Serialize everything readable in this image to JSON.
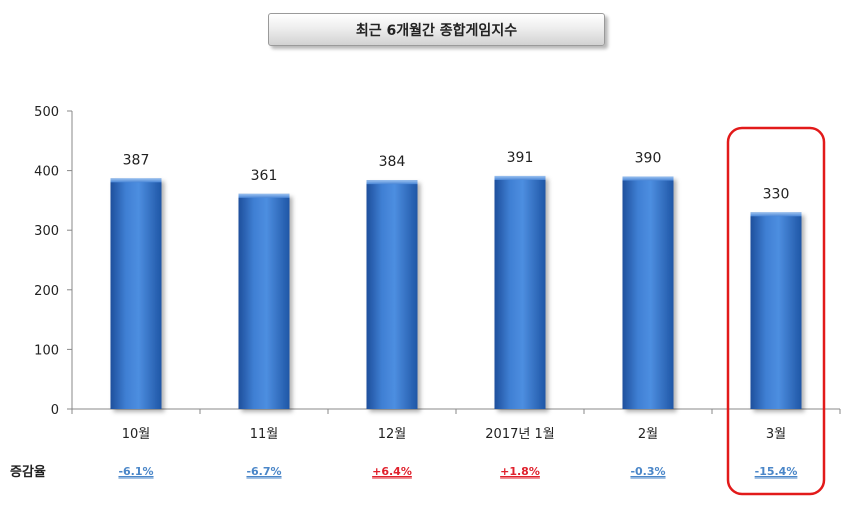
{
  "title": "최근 6개월간 종합게임지수",
  "chart_data": {
    "type": "bar",
    "title": "최근 6개월간 종합게임지수",
    "categories": [
      "10월",
      "11월",
      "12월",
      "2017년 1월",
      "2월",
      "3월"
    ],
    "values": [
      387,
      361,
      384,
      391,
      390,
      330
    ],
    "data_labels": [
      "387",
      "361",
      "384",
      "391",
      "390",
      "330"
    ],
    "ylim": [
      0,
      500
    ],
    "yticks": [
      0,
      100,
      200,
      300,
      400,
      500
    ],
    "ytick_labels": [
      "0",
      "100",
      "200",
      "300",
      "400",
      "500"
    ],
    "xlabel": "",
    "ylabel": "",
    "grid": false,
    "bar_color": "#3b78cc",
    "change_row": {
      "label": "증감율",
      "values": [
        "-6.1%",
        "-6.7%",
        "+6.4%",
        "+1.8%",
        "-0.3%",
        "-15.4%"
      ],
      "colors": [
        "#4a86c8",
        "#4a86c8",
        "#e0202c",
        "#e0202c",
        "#4a86c8",
        "#4a86c8"
      ]
    },
    "highlight": {
      "category": "3월",
      "color": "#e21a1a"
    }
  }
}
